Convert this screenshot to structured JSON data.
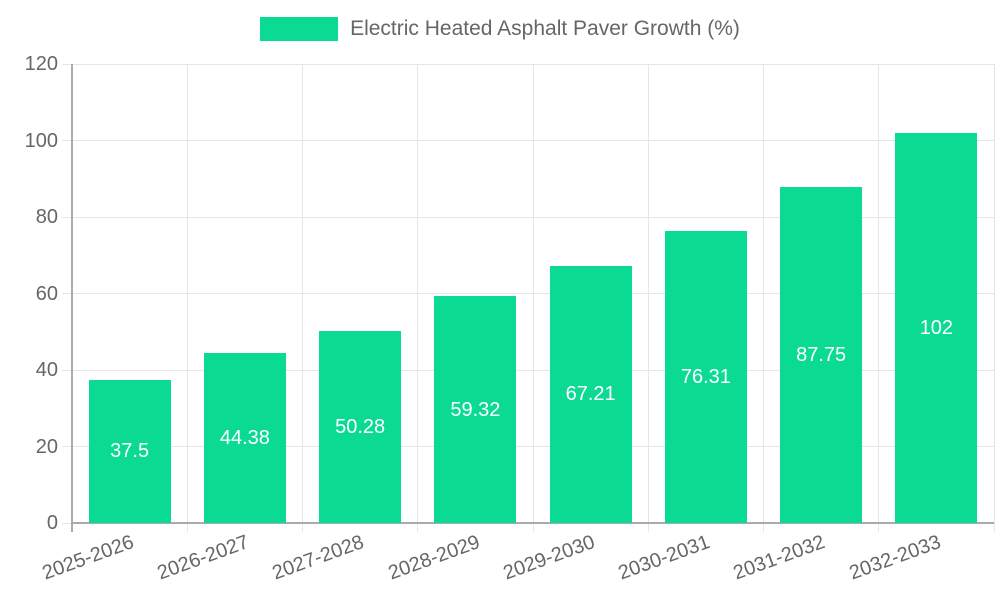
{
  "chart_data": {
    "type": "bar",
    "title": "Electric Heated Asphalt Paver Growth (%)",
    "legend_entries": [
      "Electric Heated Asphalt Paver Growth (%)"
    ],
    "legend_position": "top",
    "categories": [
      "2025-2026",
      "2026-2027",
      "2027-2028",
      "2028-2029",
      "2029-2030",
      "2030-2031",
      "2031-2032",
      "2032-2033"
    ],
    "series": [
      {
        "name": "Electric Heated Asphalt Paver Growth (%)",
        "values": [
          37.5,
          44.38,
          50.28,
          59.32,
          67.21,
          76.31,
          87.75,
          102
        ],
        "value_labels": [
          "37.5",
          "44.38",
          "50.28",
          "59.32",
          "67.21",
          "76.31",
          "87.75",
          "102"
        ]
      }
    ],
    "xlabel": "",
    "ylabel": "",
    "ylim": [
      0,
      120
    ],
    "ytick_step": 20,
    "ytick_labels": [
      "0",
      "20",
      "40",
      "60",
      "80",
      "100",
      "120"
    ],
    "grid": true,
    "x_label_rotation_deg": -20,
    "colors": {
      "bar": "#0bda93",
      "grid": "#e6e6e6",
      "axis": "#ababab",
      "tick_text": "#666666",
      "bar_label_text": "#ffffff",
      "legend_text": "#666666",
      "background": "#ffffff"
    }
  }
}
